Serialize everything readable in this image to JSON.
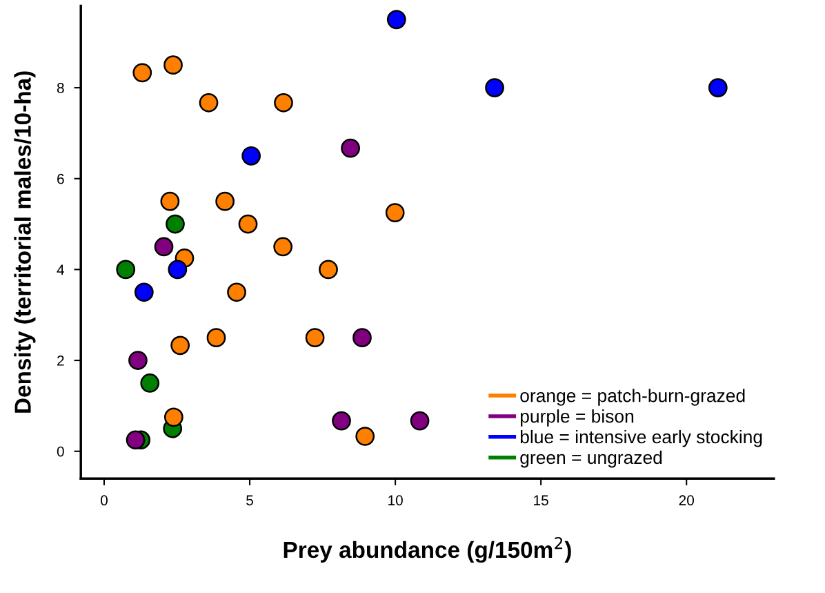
{
  "chart_data": {
    "type": "scatter",
    "xlabel": "Prey abundance (g/150m$^{2}$)",
    "ylabel": "Density (territorial males/10-ha)",
    "xlim": [
      -0.8,
      23
    ],
    "ylim": [
      -0.6,
      9.8
    ],
    "xticks": [
      0,
      5,
      10,
      15,
      20
    ],
    "yticks": [
      0,
      2,
      4,
      6,
      8
    ],
    "grid": false,
    "legend": "bottom right",
    "marker": "circle",
    "series": [
      {
        "name": "orange = patch-burn-grazed",
        "color": "#ff8000",
        "x": [
          1.31,
          2.37,
          3.59,
          6.16,
          2.26,
          4.15,
          4.94,
          6.14,
          2.76,
          7.7,
          4.55,
          2.61,
          3.85,
          7.24,
          2.39,
          9.99,
          8.96
        ],
        "values": [
          8.33,
          8.5,
          7.67,
          7.67,
          5.5,
          5.5,
          5.0,
          4.5,
          4.25,
          4.0,
          3.5,
          2.33,
          2.5,
          2.5,
          0.75,
          5.25,
          0.33
        ]
      },
      {
        "name": "purple = bison",
        "color": "#800080",
        "x": [
          2.05,
          1.16,
          1.08,
          8.46,
          8.86,
          8.15,
          10.84
        ],
        "values": [
          4.5,
          2.0,
          0.25,
          6.67,
          2.5,
          0.67,
          0.67
        ]
      },
      {
        "name": "blue = intensive early stocking",
        "color": "#0000ff",
        "x": [
          10.04,
          13.41,
          21.08,
          5.05,
          2.52,
          1.37
        ],
        "values": [
          9.5,
          8.0,
          8.0,
          6.5,
          4.0,
          3.5
        ]
      },
      {
        "name": "green = ungrazed",
        "color": "#008000",
        "x": [
          2.44,
          0.74,
          1.57,
          2.35,
          1.26
        ],
        "values": [
          5.0,
          4.0,
          1.5,
          0.5,
          0.25
        ]
      }
    ]
  }
}
